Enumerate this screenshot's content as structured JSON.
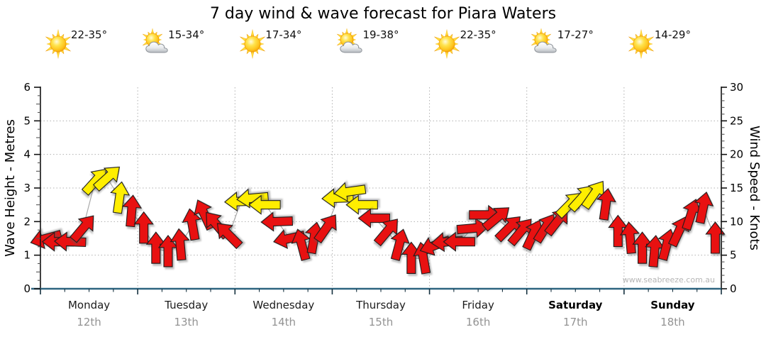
{
  "title": "7 day wind & wave forecast for Piara Waters",
  "watermark": "www.seabreeze.com.au",
  "days": [
    {
      "name": "Monday",
      "date": "12th",
      "temp": "22-35°",
      "icon": "sunny",
      "weekend": false
    },
    {
      "name": "Tuesday",
      "date": "13th",
      "temp": "15-34°",
      "icon": "partly-cloudy",
      "weekend": false
    },
    {
      "name": "Wednesday",
      "date": "14th",
      "temp": "17-34°",
      "icon": "sunny",
      "weekend": false
    },
    {
      "name": "Thursday",
      "date": "15th",
      "temp": "19-38°",
      "icon": "partly-cloudy",
      "weekend": false
    },
    {
      "name": "Friday",
      "date": "16th",
      "temp": "22-35°",
      "icon": "sunny",
      "weekend": false
    },
    {
      "name": "Saturday",
      "date": "17th",
      "temp": "17-27°",
      "icon": "partly-cloudy",
      "weekend": true
    },
    {
      "name": "Sunday",
      "date": "18th",
      "temp": "14-29°",
      "icon": "sunny",
      "weekend": true
    }
  ],
  "chart_data": {
    "type": "scatter",
    "subtype": "wind-direction-arrows",
    "title": "7 day wind & wave forecast for Piara Waters",
    "left_axis": {
      "label": "Wave Height - Metres",
      "ticks": [
        0,
        1,
        2,
        3,
        4,
        5,
        6
      ],
      "range": [
        0,
        6
      ]
    },
    "right_axis": {
      "label": "Wind Speed - Knots",
      "ticks": [
        0,
        5,
        10,
        15,
        20,
        25,
        30
      ],
      "range": [
        0,
        30
      ]
    },
    "grid": "dotted, horizontal each metre, vertical each day boundary",
    "slots_per_day": 8,
    "x_categories": [
      "Monday 12th",
      "Tuesday 13th",
      "Wednesday 14th",
      "Thursday 15th",
      "Friday 16th",
      "Saturday 17th",
      "Sunday 18th"
    ],
    "colors": {
      "r": "#e81111",
      "y": "#ffee00",
      "bottom_axis": "#2e6580",
      "gridline": "#b0b0b0"
    },
    "legend_note": "arrow height = wind speed in knots, arrow rotation = direction wind blows toward (0 = up/N, 90 = right/E, 270 = left/W); r = red (lighter), y = yellow (stronger)",
    "arrows": [
      {
        "kn": 7.5,
        "dir": 255,
        "c": "r"
      },
      {
        "kn": 7,
        "dir": 270,
        "c": "r"
      },
      {
        "kn": 7,
        "dir": 272,
        "c": "r"
      },
      {
        "kn": 9,
        "dir": 40,
        "c": "r"
      },
      {
        "kn": 16,
        "dir": 42,
        "c": "y"
      },
      {
        "kn": 16.5,
        "dir": 48,
        "c": "y"
      },
      {
        "kn": 13.5,
        "dir": 8,
        "c": "y"
      },
      {
        "kn": 11.5,
        "dir": 5,
        "c": "r"
      },
      {
        "kn": 9,
        "dir": 0,
        "c": "r"
      },
      {
        "kn": 6,
        "dir": 0,
        "c": "r"
      },
      {
        "kn": 5.5,
        "dir": 0,
        "c": "r"
      },
      {
        "kn": 6.5,
        "dir": 355,
        "c": "r"
      },
      {
        "kn": 9.5,
        "dir": 350,
        "c": "r"
      },
      {
        "kn": 11,
        "dir": 335,
        "c": "r"
      },
      {
        "kn": 9.5,
        "dir": 320,
        "c": "r"
      },
      {
        "kn": 8,
        "dir": 315,
        "c": "r"
      },
      {
        "kn": 13,
        "dir": 268,
        "c": "y"
      },
      {
        "kn": 13.5,
        "dir": 265,
        "c": "y"
      },
      {
        "kn": 12.5,
        "dir": 270,
        "c": "y"
      },
      {
        "kn": 10,
        "dir": 268,
        "c": "r"
      },
      {
        "kn": 7.5,
        "dir": 258,
        "c": "r"
      },
      {
        "kn": 6.5,
        "dir": 345,
        "c": "r"
      },
      {
        "kn": 7.5,
        "dir": 10,
        "c": "r"
      },
      {
        "kn": 9,
        "dir": 35,
        "c": "r"
      },
      {
        "kn": 13.5,
        "dir": 268,
        "c": "y"
      },
      {
        "kn": 14.5,
        "dir": 262,
        "c": "y"
      },
      {
        "kn": 12.5,
        "dir": 270,
        "c": "y"
      },
      {
        "kn": 10.5,
        "dir": 270,
        "c": "r"
      },
      {
        "kn": 8.5,
        "dir": 40,
        "c": "r"
      },
      {
        "kn": 6.5,
        "dir": 15,
        "c": "r"
      },
      {
        "kn": 4.5,
        "dir": 0,
        "c": "r"
      },
      {
        "kn": 4.5,
        "dir": 350,
        "c": "r"
      },
      {
        "kn": 6.5,
        "dir": 250,
        "c": "r"
      },
      {
        "kn": 7,
        "dir": 265,
        "c": "r"
      },
      {
        "kn": 7,
        "dir": 270,
        "c": "r"
      },
      {
        "kn": 9,
        "dir": 85,
        "c": "r"
      },
      {
        "kn": 11,
        "dir": 90,
        "c": "r"
      },
      {
        "kn": 10.5,
        "dir": 50,
        "c": "r"
      },
      {
        "kn": 9,
        "dir": 45,
        "c": "r"
      },
      {
        "kn": 8.5,
        "dir": 40,
        "c": "r"
      },
      {
        "kn": 8,
        "dir": 25,
        "c": "r"
      },
      {
        "kn": 9,
        "dir": 32,
        "c": "r"
      },
      {
        "kn": 10,
        "dir": 38,
        "c": "r"
      },
      {
        "kn": 12.5,
        "dir": 45,
        "c": "y"
      },
      {
        "kn": 13.5,
        "dir": 42,
        "c": "y"
      },
      {
        "kn": 14,
        "dir": 35,
        "c": "y"
      },
      {
        "kn": 12.5,
        "dir": 8,
        "c": "r"
      },
      {
        "kn": 8.5,
        "dir": 0,
        "c": "r"
      },
      {
        "kn": 7.5,
        "dir": 355,
        "c": "r"
      },
      {
        "kn": 6,
        "dir": 0,
        "c": "r"
      },
      {
        "kn": 5.5,
        "dir": 5,
        "c": "r"
      },
      {
        "kn": 6.5,
        "dir": 15,
        "c": "r"
      },
      {
        "kn": 8.5,
        "dir": 25,
        "c": "r"
      },
      {
        "kn": 11,
        "dir": 18,
        "c": "r"
      },
      {
        "kn": 12,
        "dir": 12,
        "c": "r"
      },
      {
        "kn": 7.5,
        "dir": 0,
        "c": "r"
      }
    ]
  }
}
